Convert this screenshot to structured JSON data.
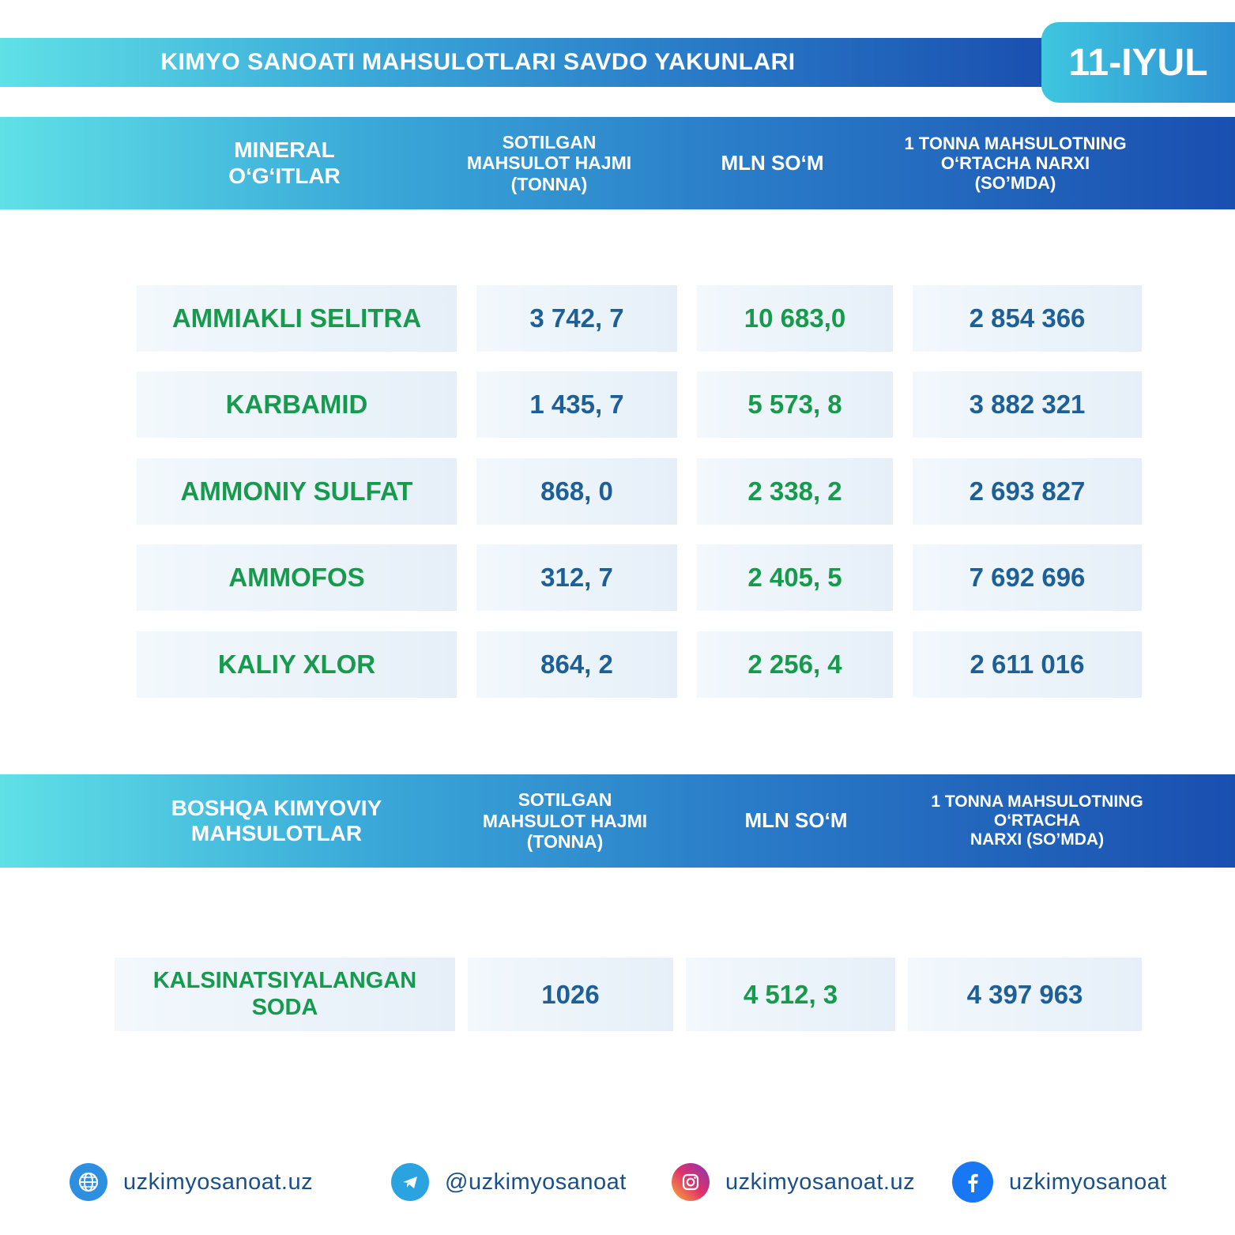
{
  "title": "KIMYO SANOATI MAHSULOTLARI SAVDO YAKUNLARI",
  "date": "11-IYUL",
  "section1": {
    "headers": [
      "MINERAL\nO‘G‘ITLAR",
      "SOTILGAN\nMAHSULOT HAJMI\n(TONNA)",
      "MLN SO‘M",
      "1 TONNA MAHSULOTNING\nO‘RTACHA NARXI\n(SO’MDA)"
    ],
    "rows": [
      {
        "name": "AMMIAKLI SELITRA",
        "volume": "3 742, 7",
        "mln": "10 683,0",
        "price": "2 854 366"
      },
      {
        "name": "KARBAMID",
        "volume": "1 435, 7",
        "mln": "5 573, 8",
        "price": "3 882 321"
      },
      {
        "name": "AMMONIY SULFAT",
        "volume": "868, 0",
        "mln": "2 338, 2",
        "price": "2 693 827"
      },
      {
        "name": "AMMOFOS",
        "volume": "312, 7",
        "mln": "2 405, 5",
        "price": "7 692 696"
      },
      {
        "name": "KALIY XLOR",
        "volume": "864, 2",
        "mln": "2 256, 4",
        "price": "2 611 016"
      }
    ]
  },
  "section2": {
    "headers": [
      "BOSHQA KIMYOVIY\nMAHSULOTLAR",
      "SOTILGAN\nMAHSULOT HAJMI\n(TONNA)",
      "MLN SO‘M",
      "1 TONNA MAHSULOTNING\nO‘RTACHA\nNARXI (SO’MDA)"
    ],
    "rows": [
      {
        "name": "KALSINATSIYALANGAN\nSODA",
        "volume": "1026",
        "mln": "4 512, 3",
        "price": "4 397 963"
      }
    ]
  },
  "footer": [
    {
      "icon": "globe-icon",
      "text": "uzkimyosanoat.uz",
      "color": "#2e8fe0"
    },
    {
      "icon": "telegram-icon",
      "text": "@uzkimyosanoat",
      "color": "#2aa3e0"
    },
    {
      "icon": "instagram-icon",
      "text": "uzkimyosanoat.uz",
      "color": "#d6306f"
    },
    {
      "icon": "facebook-icon",
      "text": "uzkimyosanoat",
      "color": "#1877f2"
    }
  ]
}
